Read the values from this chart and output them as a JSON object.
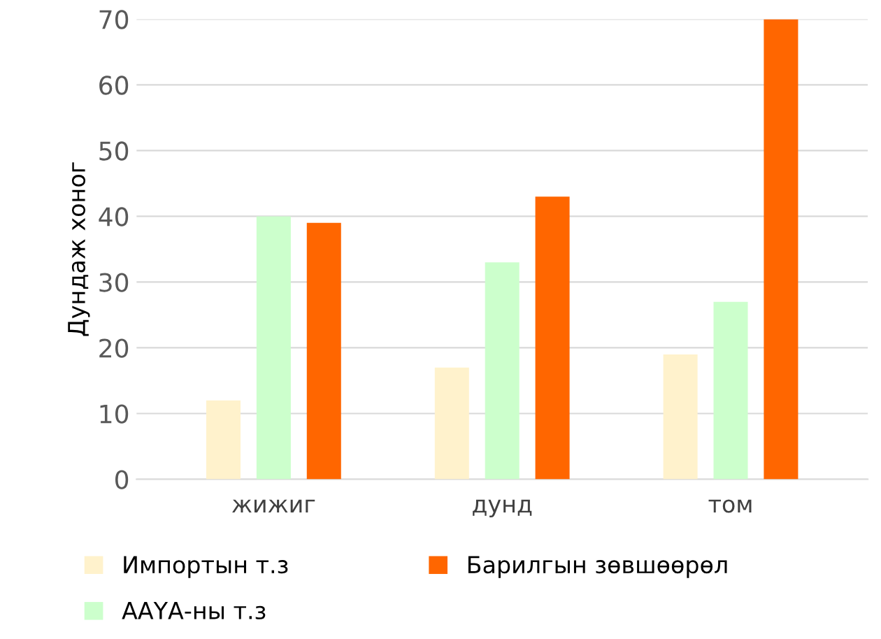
{
  "chart_data": {
    "type": "bar",
    "ylabel": "Дундаж хоног",
    "categories": [
      "жижиг",
      "дунд",
      "том"
    ],
    "series": [
      {
        "name": "Импортын т.з",
        "color": "#fff2cc",
        "values": [
          12,
          17,
          19
        ]
      },
      {
        "name": "ААҮА-ны т.з",
        "color": "#ccffcc",
        "values": [
          40,
          33,
          27
        ]
      },
      {
        "name": "Барилгын зөвшөөрөл",
        "color": "#ff6600",
        "values": [
          39,
          43,
          70
        ]
      }
    ],
    "ylim": [
      0,
      70
    ],
    "yticks": [
      0,
      10,
      20,
      30,
      40,
      50,
      60,
      70
    ],
    "grid": "y",
    "legend": "bottom"
  }
}
